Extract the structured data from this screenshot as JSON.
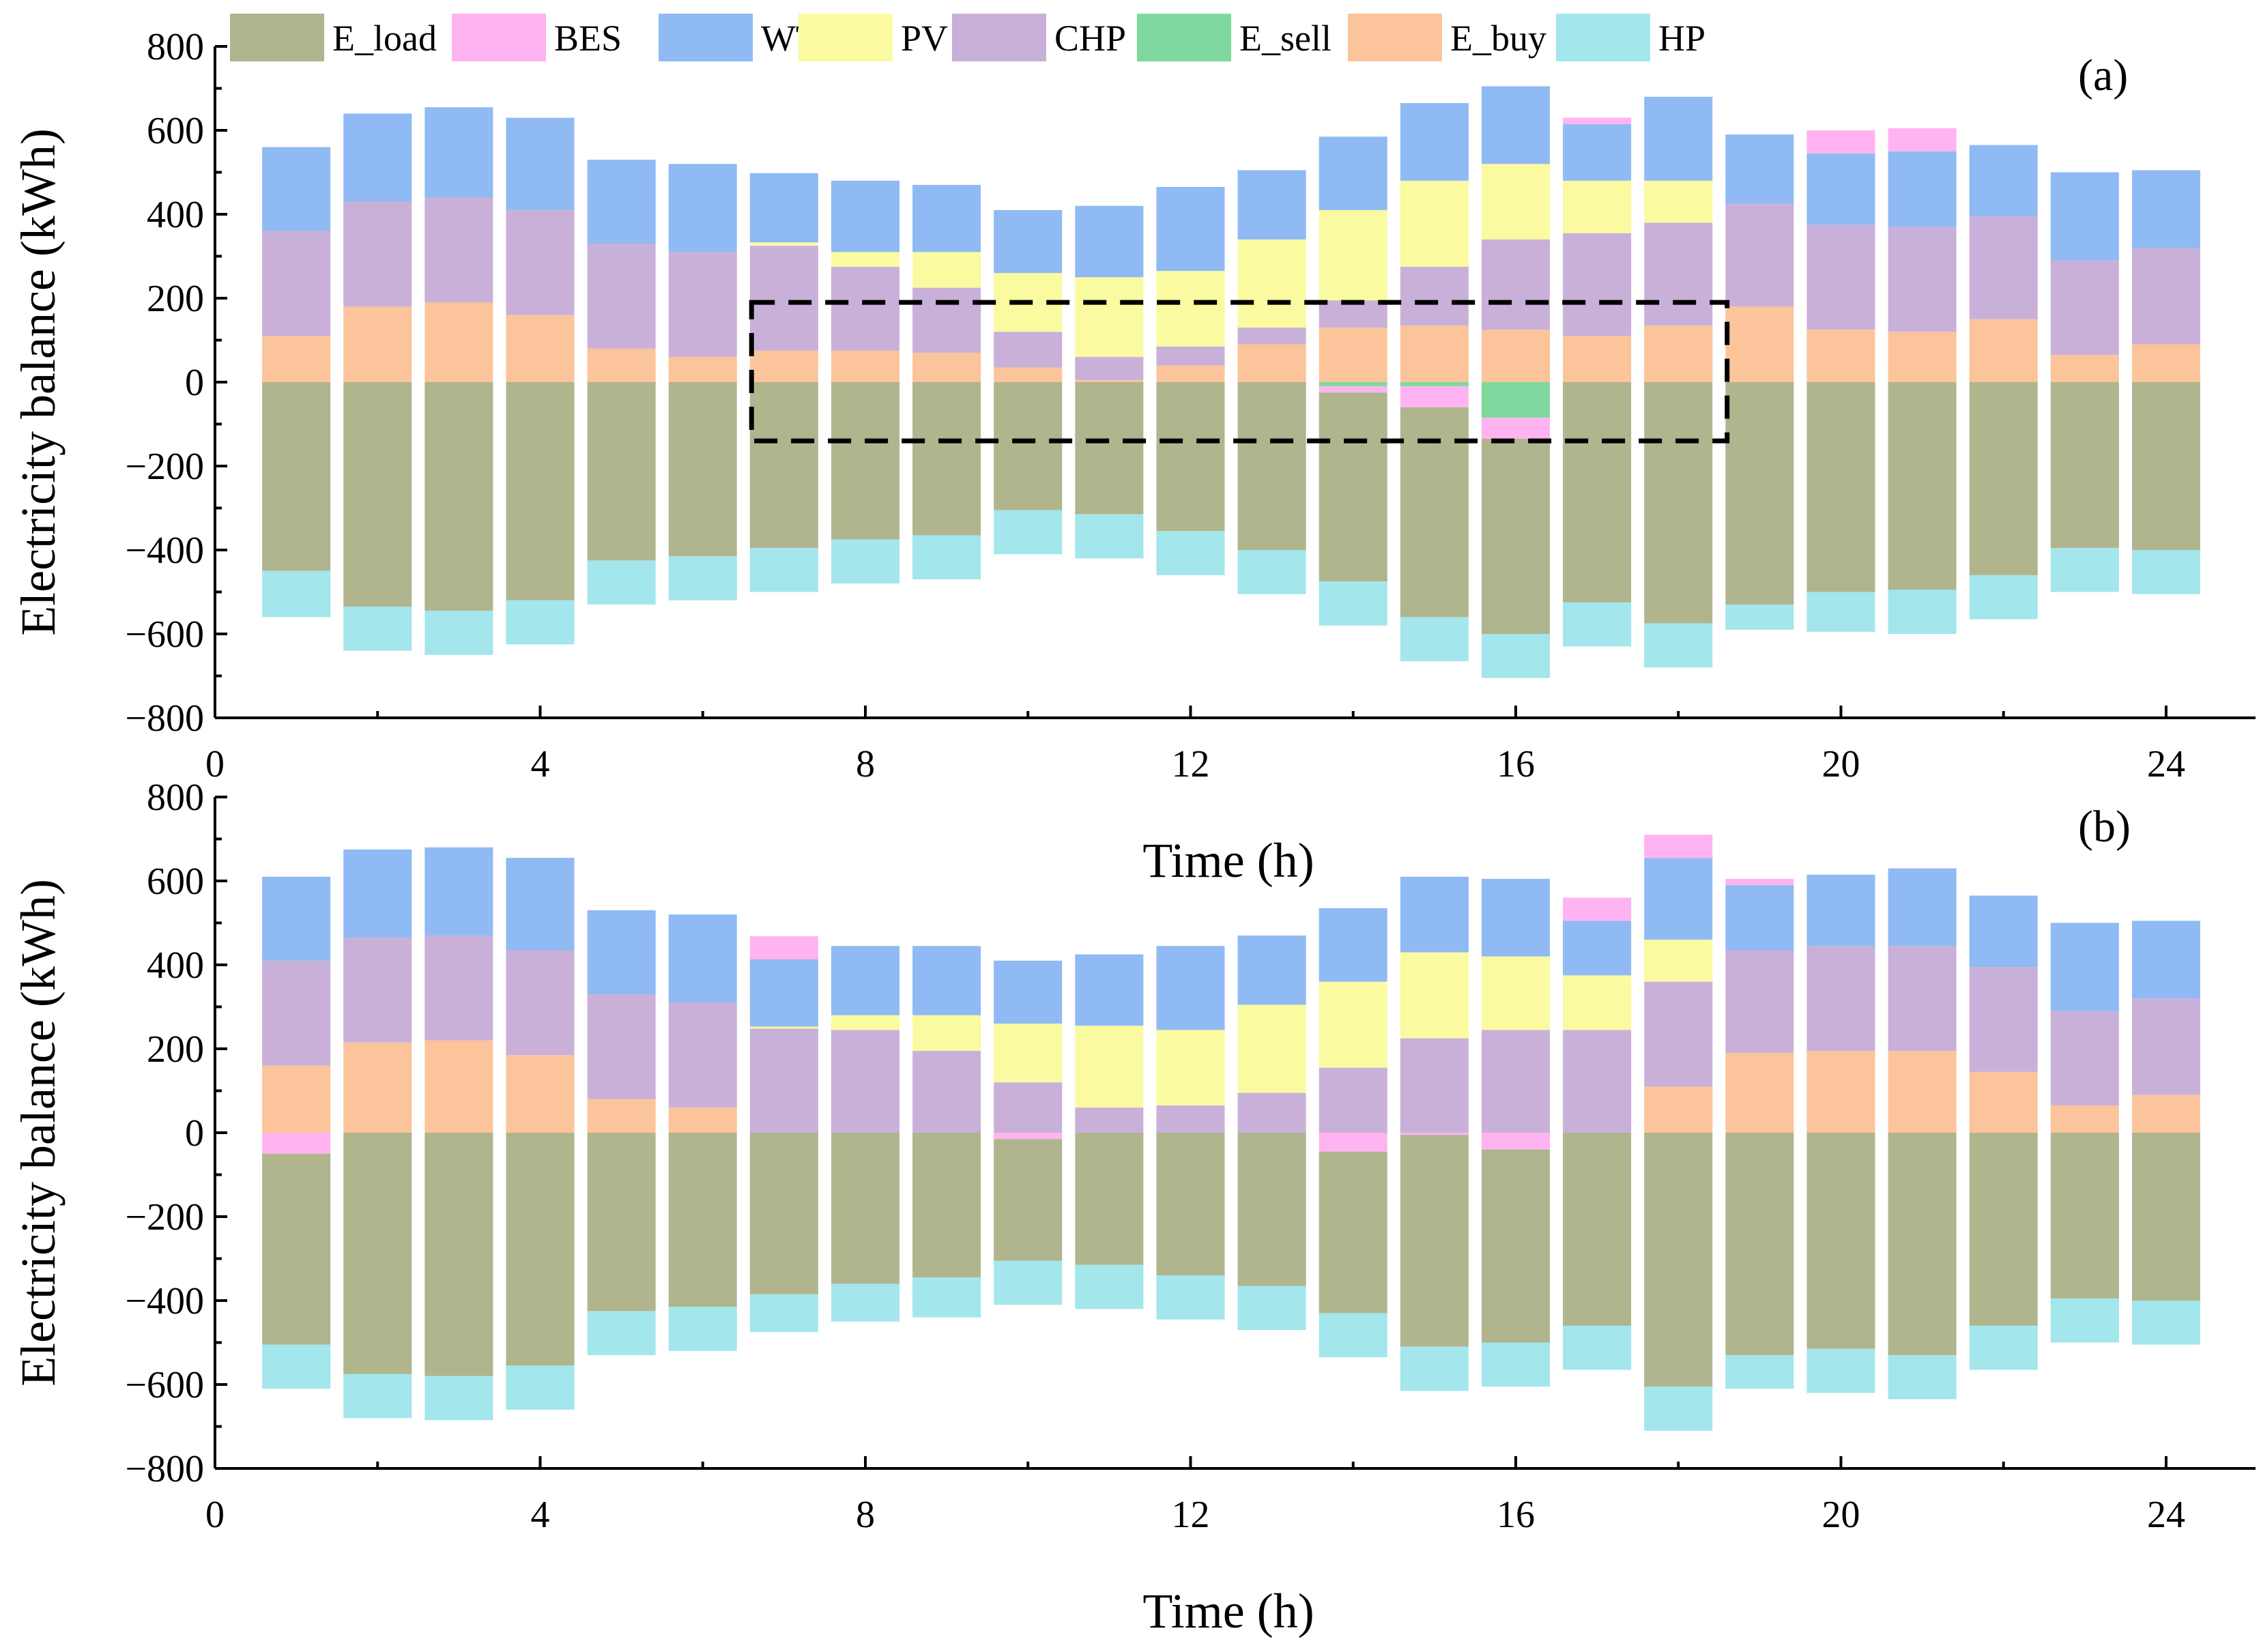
{
  "legend": [
    {
      "key": "E_load",
      "label": "E_load",
      "color": "#b0b58e"
    },
    {
      "key": "BES",
      "label": "BES",
      "color": "#ffb3f0"
    },
    {
      "key": "WT",
      "label": "WT",
      "color": "#8fbaf3"
    },
    {
      "key": "PV",
      "label": "PV",
      "color": "#fafaa0"
    },
    {
      "key": "CHP",
      "label": "CHP",
      "color": "#c9b0d9"
    },
    {
      "key": "E_sell",
      "label": "E_sell",
      "color": "#7fd99e"
    },
    {
      "key": "E_buy",
      "label": "E_buy",
      "color": "#fbc49a"
    },
    {
      "key": "HP",
      "label": "HP",
      "color": "#a3e6eb"
    }
  ],
  "chart_data": [
    {
      "type": "bar",
      "stacked": true,
      "panel_label": "(a)",
      "xlabel": "",
      "ylabel": "Electricity balance (kWh)",
      "xlim": [
        0,
        25.1
      ],
      "ylim": [
        -800,
        800
      ],
      "xticks": [
        0,
        4,
        8,
        12,
        16,
        20,
        24
      ],
      "yticks": [
        -800,
        -600,
        -400,
        -200,
        0,
        200,
        400,
        600,
        800
      ],
      "highlight_box": {
        "x": [
          6.6,
          18.6
        ],
        "y": [
          -140,
          190
        ]
      },
      "x": [
        1,
        2,
        3,
        4,
        5,
        6,
        7,
        8,
        9,
        10,
        11,
        12,
        13,
        14,
        15,
        16,
        17,
        18,
        19,
        20,
        21,
        22,
        23,
        24
      ],
      "positive_stack_order": [
        "E_buy",
        "CHP",
        "PV",
        "WT",
        "BES"
      ],
      "negative_stack_order": [
        "E_sell",
        "BES",
        "E_load",
        "HP"
      ],
      "series": [
        {
          "name": "E_buy",
          "values": [
            110,
            180,
            190,
            160,
            80,
            60,
            75,
            75,
            70,
            35,
            5,
            40,
            90,
            130,
            135,
            125,
            110,
            135,
            180,
            125,
            120,
            150,
            65,
            90
          ]
        },
        {
          "name": "CHP",
          "values": [
            250,
            250,
            250,
            250,
            250,
            250,
            250,
            200,
            155,
            85,
            55,
            45,
            40,
            65,
            140,
            215,
            245,
            245,
            245,
            250,
            250,
            245,
            225,
            230
          ]
        },
        {
          "name": "PV",
          "values": [
            0,
            0,
            0,
            0,
            0,
            0,
            8,
            35,
            85,
            140,
            190,
            180,
            210,
            215,
            205,
            180,
            125,
            100,
            0,
            0,
            0,
            0,
            0,
            0
          ]
        },
        {
          "name": "WT",
          "values": [
            200,
            210,
            215,
            220,
            200,
            210,
            165,
            170,
            160,
            150,
            170,
            200,
            165,
            175,
            185,
            185,
            135,
            200,
            165,
            170,
            180,
            170,
            210,
            185
          ]
        },
        {
          "name": "BES_charge",
          "values": [
            0,
            0,
            0,
            0,
            0,
            0,
            0,
            0,
            0,
            0,
            0,
            0,
            0,
            0,
            0,
            0,
            15,
            0,
            0,
            55,
            55,
            0,
            0,
            0
          ]
        },
        {
          "name": "E_sell",
          "values": [
            0,
            0,
            0,
            0,
            0,
            0,
            0,
            0,
            0,
            0,
            0,
            0,
            0,
            -10,
            -10,
            -85,
            0,
            0,
            0,
            0,
            0,
            0,
            0,
            0
          ]
        },
        {
          "name": "BES_discharge",
          "values": [
            0,
            0,
            0,
            0,
            0,
            0,
            0,
            0,
            0,
            0,
            0,
            0,
            0,
            -15,
            -50,
            -50,
            0,
            0,
            0,
            0,
            0,
            0,
            0,
            0
          ]
        },
        {
          "name": "E_load",
          "values": [
            -450,
            -535,
            -545,
            -520,
            -425,
            -415,
            -395,
            -375,
            -365,
            -305,
            -315,
            -355,
            -400,
            -450,
            -500,
            -465,
            -525,
            -575,
            -530,
            -500,
            -495,
            -460,
            -395,
            -400
          ]
        },
        {
          "name": "HP",
          "values": [
            -110,
            -105,
            -105,
            -105,
            -105,
            -105,
            -105,
            -105,
            -105,
            -105,
            -105,
            -105,
            -105,
            -105,
            -105,
            -105,
            -105,
            -105,
            -60,
            -95,
            -105,
            -105,
            -105,
            -105
          ]
        }
      ]
    },
    {
      "type": "bar",
      "stacked": true,
      "panel_label": "(b)",
      "xlabel": "Time (h)",
      "ylabel": "Electricity balance (kWh)",
      "xlim": [
        0,
        25.1
      ],
      "ylim": [
        -800,
        800
      ],
      "xticks": [
        0,
        4,
        8,
        12,
        16,
        20,
        24
      ],
      "yticks": [
        -800,
        -600,
        -400,
        -200,
        0,
        200,
        400,
        600,
        800
      ],
      "x": [
        1,
        2,
        3,
        4,
        5,
        6,
        7,
        8,
        9,
        10,
        11,
        12,
        13,
        14,
        15,
        16,
        17,
        18,
        19,
        20,
        21,
        22,
        23,
        24
      ],
      "positive_stack_order": [
        "E_buy",
        "CHP",
        "PV",
        "WT",
        "BES"
      ],
      "negative_stack_order": [
        "E_sell",
        "BES",
        "E_load",
        "HP"
      ],
      "series": [
        {
          "name": "E_buy",
          "values": [
            160,
            215,
            220,
            185,
            80,
            60,
            0,
            0,
            0,
            0,
            0,
            0,
            0,
            0,
            0,
            0,
            0,
            110,
            190,
            195,
            195,
            145,
            65,
            90
          ]
        },
        {
          "name": "CHP",
          "values": [
            250,
            250,
            250,
            250,
            250,
            250,
            248,
            245,
            195,
            120,
            60,
            65,
            95,
            155,
            225,
            245,
            245,
            250,
            245,
            250,
            250,
            250,
            225,
            230
          ]
        },
        {
          "name": "PV",
          "values": [
            0,
            0,
            0,
            0,
            0,
            0,
            5,
            35,
            85,
            140,
            195,
            180,
            210,
            205,
            205,
            175,
            130,
            100,
            0,
            0,
            0,
            0,
            0,
            0
          ]
        },
        {
          "name": "WT",
          "values": [
            200,
            210,
            210,
            220,
            200,
            210,
            160,
            165,
            165,
            150,
            170,
            200,
            165,
            175,
            180,
            185,
            130,
            195,
            155,
            170,
            185,
            170,
            210,
            185
          ]
        },
        {
          "name": "BES_charge",
          "values": [
            0,
            0,
            0,
            0,
            0,
            0,
            55,
            0,
            0,
            0,
            0,
            0,
            0,
            0,
            0,
            0,
            55,
            55,
            15,
            0,
            0,
            0,
            0,
            0
          ]
        },
        {
          "name": "E_sell",
          "values": [
            0,
            0,
            0,
            0,
            0,
            0,
            0,
            0,
            0,
            0,
            0,
            0,
            0,
            0,
            0,
            0,
            0,
            0,
            0,
            0,
            0,
            0,
            0,
            0
          ]
        },
        {
          "name": "BES_discharge",
          "values": [
            -50,
            0,
            0,
            0,
            0,
            0,
            0,
            0,
            0,
            -15,
            0,
            0,
            0,
            -45,
            -5,
            -40,
            0,
            0,
            0,
            0,
            0,
            0,
            0,
            0
          ]
        },
        {
          "name": "E_load",
          "values": [
            -455,
            -575,
            -580,
            -555,
            -425,
            -415,
            -385,
            -360,
            -345,
            -290,
            -315,
            -340,
            -365,
            -385,
            -505,
            -460,
            -460,
            -605,
            -530,
            -515,
            -530,
            -460,
            -395,
            -400
          ]
        },
        {
          "name": "HP",
          "values": [
            -105,
            -105,
            -105,
            -105,
            -105,
            -105,
            -90,
            -90,
            -95,
            -105,
            -105,
            -105,
            -105,
            -105,
            -105,
            -105,
            -105,
            -105,
            -80,
            -105,
            -105,
            -105,
            -105,
            -105
          ]
        }
      ]
    }
  ]
}
